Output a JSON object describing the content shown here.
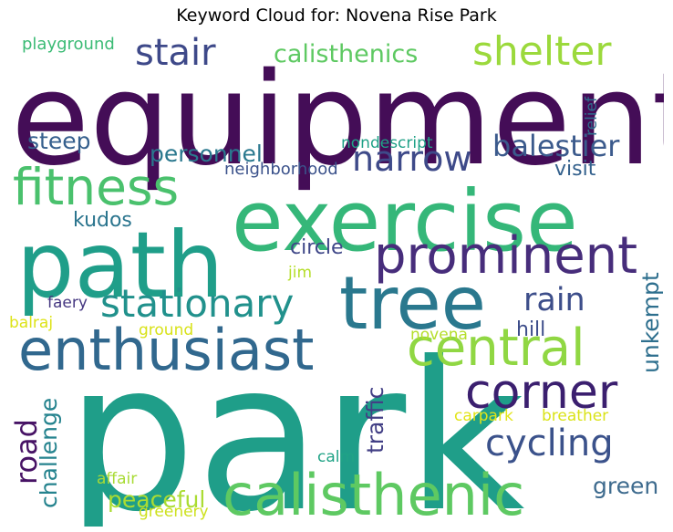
{
  "chart_data": {
    "type": "wordcloud",
    "title": "Keyword Cloud for: Novena Rise Park",
    "colormap": "viridis",
    "words": [
      {
        "text": "park",
        "weight": 100,
        "color": "#1f9e89"
      },
      {
        "text": "equipment",
        "weight": 78,
        "color": "#440d57"
      },
      {
        "text": "exercise",
        "weight": 56,
        "color": "#35b779"
      },
      {
        "text": "path",
        "weight": 56,
        "color": "#1f9e89"
      },
      {
        "text": "tree",
        "weight": 48,
        "color": "#2a788e"
      },
      {
        "text": "calisthenic",
        "weight": 42,
        "color": "#5ec962"
      },
      {
        "text": "enthusiast",
        "weight": 40,
        "color": "#31688e"
      },
      {
        "text": "central",
        "weight": 34,
        "color": "#90d743"
      },
      {
        "text": "prominent",
        "weight": 34,
        "color": "#472d7b"
      },
      {
        "text": "fitness",
        "weight": 34,
        "color": "#4ac16d"
      },
      {
        "text": "corner",
        "weight": 32,
        "color": "#3b1f6f"
      },
      {
        "text": "shelter",
        "weight": 27,
        "color": "#9bd93c"
      },
      {
        "text": "stationary",
        "weight": 26,
        "color": "#21918c"
      },
      {
        "text": "stair",
        "weight": 25,
        "color": "#3e4989"
      },
      {
        "text": "cycling",
        "weight": 25,
        "color": "#3b528b"
      },
      {
        "text": "narrow",
        "weight": 24,
        "color": "#3e4a89"
      },
      {
        "text": "rain",
        "weight": 22,
        "color": "#3d4e8a"
      },
      {
        "text": "balestier",
        "weight": 20,
        "color": "#3b5a8c"
      },
      {
        "text": "road",
        "weight": 20,
        "color": "#471365"
      },
      {
        "text": "calisthenics",
        "weight": 17,
        "color": "#5ec962"
      },
      {
        "text": "challenge",
        "weight": 16,
        "color": "#25838e"
      },
      {
        "text": "personnel",
        "weight": 16,
        "color": "#2a788e"
      },
      {
        "text": "unkempt",
        "weight": 16,
        "color": "#2e6f8e"
      },
      {
        "text": "traffic",
        "weight": 16,
        "color": "#423f85"
      },
      {
        "text": "peaceful",
        "weight": 16,
        "color": "#aadc32"
      },
      {
        "text": "steep",
        "weight": 16,
        "color": "#355f8d"
      },
      {
        "text": "green",
        "weight": 16,
        "color": "#3e6b8e"
      },
      {
        "text": "circle",
        "weight": 14,
        "color": "#3f4788"
      },
      {
        "text": "visit",
        "weight": 14,
        "color": "#34618d"
      },
      {
        "text": "kudos",
        "weight": 14,
        "color": "#2b758e"
      },
      {
        "text": "hill",
        "weight": 14,
        "color": "#3d4d8a"
      },
      {
        "text": "neighborhood",
        "weight": 12,
        "color": "#3b528b"
      },
      {
        "text": "playground",
        "weight": 12,
        "color": "#3bbb75"
      },
      {
        "text": "nondescript",
        "weight": 11,
        "color": "#1fa187"
      },
      {
        "text": "relief",
        "weight": 11,
        "color": "#2e6e8e"
      },
      {
        "text": "faery",
        "weight": 11,
        "color": "#453781"
      },
      {
        "text": "novena",
        "weight": 11,
        "color": "#b5de2b"
      },
      {
        "text": "ground",
        "weight": 11,
        "color": "#d8e219"
      },
      {
        "text": "balraj",
        "weight": 11,
        "color": "#dde318"
      },
      {
        "text": "jim",
        "weight": 11,
        "color": "#b5de2b"
      },
      {
        "text": "carpark",
        "weight": 11,
        "color": "#e2e418"
      },
      {
        "text": "breather",
        "weight": 11,
        "color": "#dae319"
      },
      {
        "text": "calm",
        "weight": 11,
        "color": "#20a386"
      },
      {
        "text": "affair",
        "weight": 11,
        "color": "#a8db34"
      },
      {
        "text": "greenery",
        "weight": 11,
        "color": "#cde11d"
      }
    ]
  }
}
